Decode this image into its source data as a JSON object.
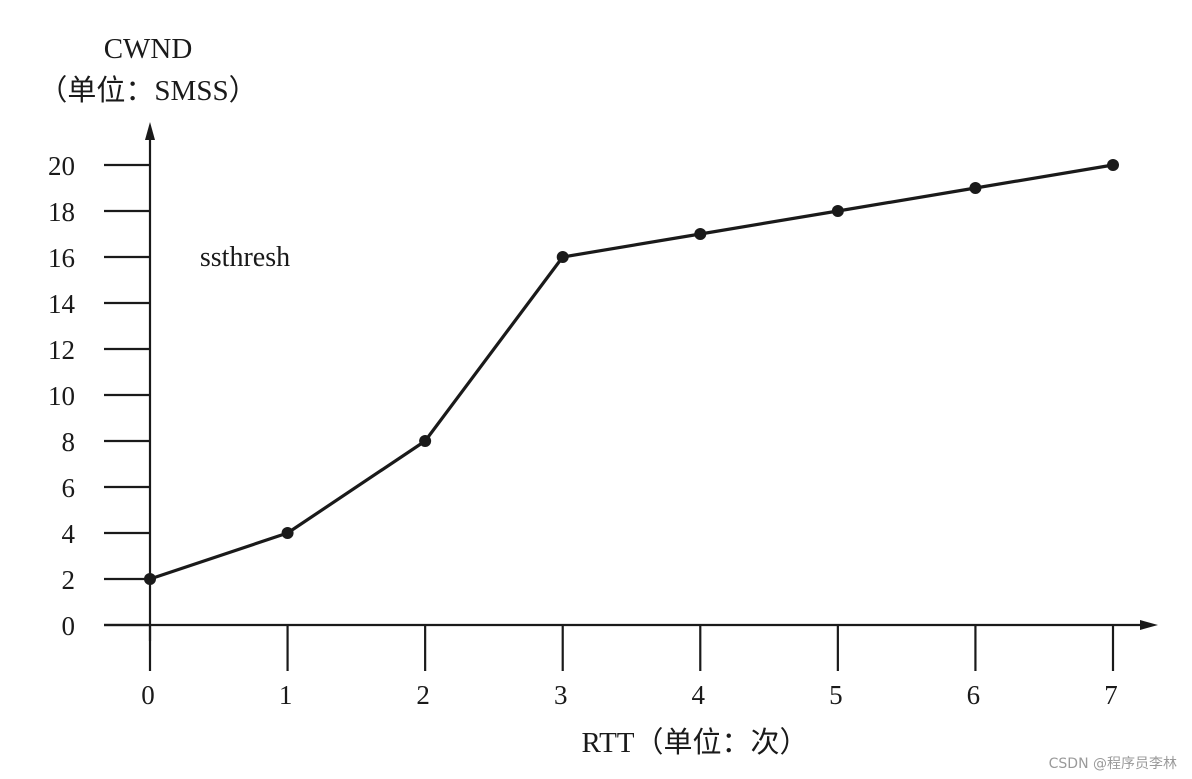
{
  "chart_data": {
    "type": "line",
    "ylabel_line1": "CWND",
    "ylabel_line2": "（单位：SMSS）",
    "xlabel": "RTT（单位：次）",
    "annotation": "ssthresh",
    "x": [
      0,
      1,
      2,
      3,
      4,
      5,
      6,
      7
    ],
    "y": [
      2,
      4,
      8,
      16,
      17,
      18,
      19,
      20
    ],
    "x_ticks": [
      "0",
      "1",
      "2",
      "3",
      "4",
      "5",
      "6",
      "7"
    ],
    "y_ticks": [
      "0",
      "2",
      "4",
      "6",
      "8",
      "10",
      "12",
      "14",
      "16",
      "18",
      "20"
    ],
    "xlim": [
      0,
      7
    ],
    "ylim": [
      0,
      20
    ],
    "grid": false,
    "colors": {
      "line": "#1a1a1a",
      "axis": "#1a1a1a"
    }
  },
  "watermark": "CSDN @程序员李林"
}
